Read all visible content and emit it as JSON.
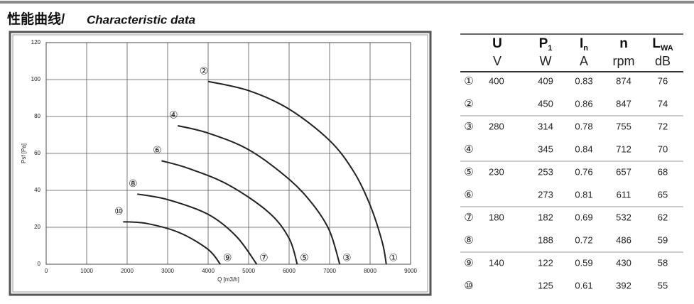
{
  "header": {
    "title_cn": "性能曲线/",
    "title_en": "Characteristic data"
  },
  "chart_data": {
    "type": "line",
    "x_label": "Q [m3/h]",
    "y_label": "Psf [Pa]",
    "xlim": [
      0,
      9000
    ],
    "xticks": [
      0,
      1000,
      2000,
      3000,
      4000,
      5000,
      6000,
      7000,
      8000,
      9000
    ],
    "ylim": [
      0,
      120
    ],
    "yticks": [
      0,
      20,
      40,
      60,
      80,
      100,
      120
    ],
    "grid": true,
    "color": "#222222",
    "series": [
      {
        "start_label": "②",
        "end_label": "①",
        "x": [
          4000,
          5000,
          6000,
          7000,
          7600,
          8000,
          8300,
          8400
        ],
        "values": [
          99,
          94,
          84,
          67,
          50,
          32,
          12,
          0
        ]
      },
      {
        "start_label": "④",
        "end_label": "③",
        "x": [
          3250,
          4000,
          5000,
          6000,
          6600,
          7000,
          7250
        ],
        "values": [
          75,
          71,
          62,
          46,
          32,
          18,
          0
        ]
      },
      {
        "start_label": "⑥",
        "end_label": "⑤",
        "x": [
          2850,
          3500,
          4500,
          5500,
          6000,
          6200
        ],
        "values": [
          56,
          52,
          43,
          28,
          14,
          0
        ]
      },
      {
        "start_label": "⑧",
        "end_label": "⑦",
        "x": [
          2250,
          3000,
          4000,
          4700,
          5200
        ],
        "values": [
          38,
          35,
          27,
          15,
          0
        ]
      },
      {
        "start_label": "⑩",
        "end_label": "⑨",
        "x": [
          1900,
          2500,
          3300,
          4000,
          4300
        ],
        "values": [
          23,
          22,
          17,
          8,
          0
        ]
      }
    ]
  },
  "table": {
    "header": [
      {
        "symbol": "U",
        "unit": "V"
      },
      {
        "symbol": "P",
        "sub": "1",
        "unit": "W"
      },
      {
        "symbol": "I",
        "sub": "n",
        "unit": "A"
      },
      {
        "symbol": "n",
        "unit": "rpm"
      },
      {
        "symbol": "L",
        "sub": "WA",
        "unit": "dB"
      }
    ],
    "rows": [
      [
        "①",
        "400",
        "409",
        "0.83",
        "874",
        "76"
      ],
      [
        "②",
        null,
        "450",
        "0.86",
        "847",
        "74"
      ],
      [
        "③",
        "280",
        "314",
        "0.78",
        "755",
        "72"
      ],
      [
        "④",
        null,
        "345",
        "0.84",
        "712",
        "70"
      ],
      [
        "⑤",
        "230",
        "253",
        "0.76",
        "657",
        "68"
      ],
      [
        "⑥",
        null,
        "273",
        "0.81",
        "611",
        "65"
      ],
      [
        "⑦",
        "180",
        "182",
        "0.69",
        "532",
        "62"
      ],
      [
        "⑧",
        null,
        "188",
        "0.72",
        "486",
        "59"
      ],
      [
        "⑨",
        "140",
        "122",
        "0.59",
        "430",
        "58"
      ],
      [
        "⑩",
        null,
        "125",
        "0.61",
        "392",
        "55"
      ]
    ]
  }
}
